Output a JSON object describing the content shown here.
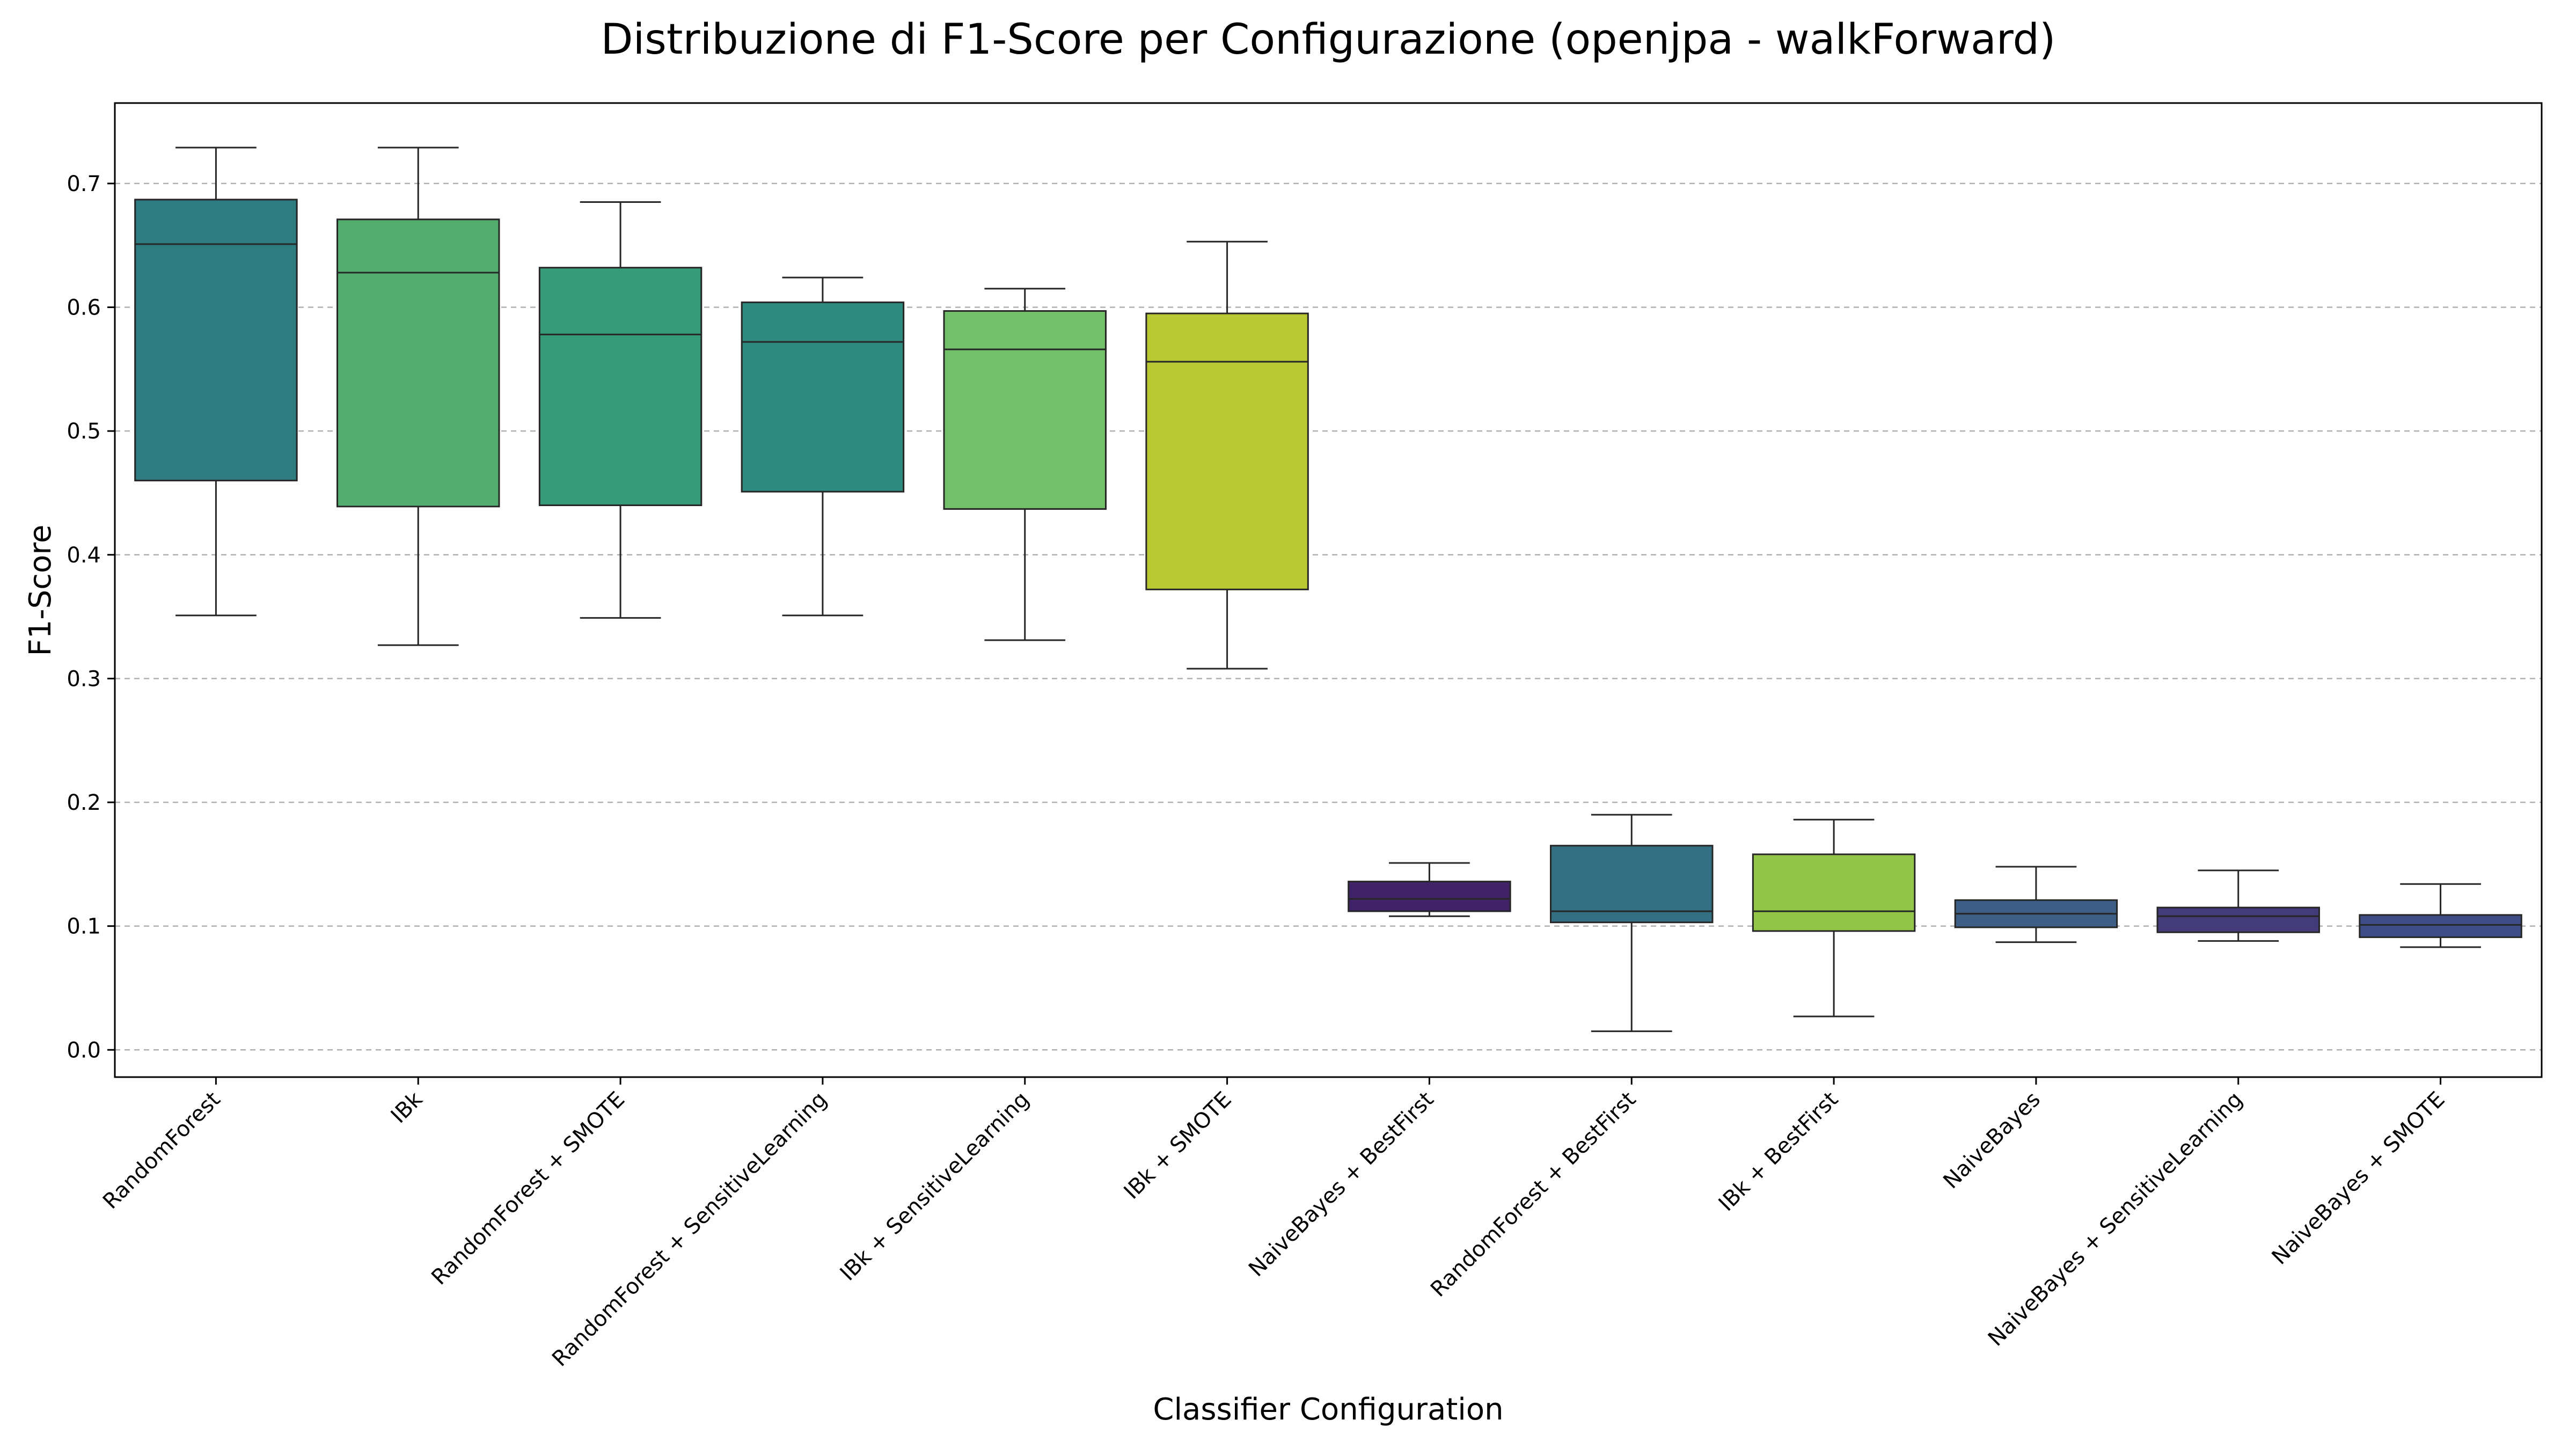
{
  "chart_data": {
    "type": "box",
    "title": "Distribuzione di F1-Score per Configurazione (openjpa - walkForward)",
    "xlabel": "Classifier Configuration",
    "ylabel": "F1-Score",
    "ylim": [
      -0.022,
      0.765
    ],
    "yticks": [
      0.0,
      0.1,
      0.2,
      0.3,
      0.4,
      0.5,
      0.6,
      0.7
    ],
    "grid": "horizontal-dashed",
    "categories": [
      "RandomForest",
      "IBk",
      "RandomForest + SMOTE",
      "RandomForest + SensitiveLearning",
      "IBk + SensitiveLearning",
      "IBk + SMOTE",
      "NaiveBayes + BestFirst",
      "RandomForest + BestFirst",
      "IBk + BestFirst",
      "NaiveBayes",
      "NaiveBayes + SensitiveLearning",
      "NaiveBayes + SMOTE"
    ],
    "boxes": [
      {
        "whisker_low": 0.351,
        "q1": 0.46,
        "median": 0.651,
        "q3": 0.687,
        "whisker_high": 0.729,
        "color": "#2e7b80"
      },
      {
        "whisker_low": 0.327,
        "q1": 0.439,
        "median": 0.628,
        "q3": 0.671,
        "whisker_high": 0.729,
        "color": "#52ad6e"
      },
      {
        "whisker_low": 0.349,
        "q1": 0.44,
        "median": 0.578,
        "q3": 0.632,
        "whisker_high": 0.685,
        "color": "#369b79"
      },
      {
        "whisker_low": 0.351,
        "q1": 0.451,
        "median": 0.572,
        "q3": 0.604,
        "whisker_high": 0.624,
        "color": "#2e8b7d"
      },
      {
        "whisker_low": 0.331,
        "q1": 0.437,
        "median": 0.566,
        "q3": 0.597,
        "whisker_high": 0.615,
        "color": "#74bf69"
      },
      {
        "whisker_low": 0.308,
        "q1": 0.372,
        "median": 0.556,
        "q3": 0.595,
        "whisker_high": 0.653,
        "color": "#b9c835"
      },
      {
        "whisker_low": 0.108,
        "q1": 0.112,
        "median": 0.122,
        "q3": 0.136,
        "whisker_high": 0.151,
        "color": "#412467"
      },
      {
        "whisker_low": 0.015,
        "q1": 0.103,
        "median": 0.112,
        "q3": 0.165,
        "whisker_high": 0.19,
        "color": "#356f83"
      },
      {
        "whisker_low": 0.027,
        "q1": 0.096,
        "median": 0.112,
        "q3": 0.158,
        "whisker_high": 0.186,
        "color": "#92c548"
      },
      {
        "whisker_low": 0.087,
        "q1": 0.099,
        "median": 0.11,
        "q3": 0.121,
        "whisker_high": 0.148,
        "color": "#3e5f85"
      },
      {
        "whisker_low": 0.088,
        "q1": 0.095,
        "median": 0.108,
        "q3": 0.115,
        "whisker_high": 0.145,
        "color": "#433b7a"
      },
      {
        "whisker_low": 0.083,
        "q1": 0.091,
        "median": 0.101,
        "q3": 0.109,
        "whisker_high": 0.134,
        "color": "#3f4d86"
      }
    ]
  }
}
